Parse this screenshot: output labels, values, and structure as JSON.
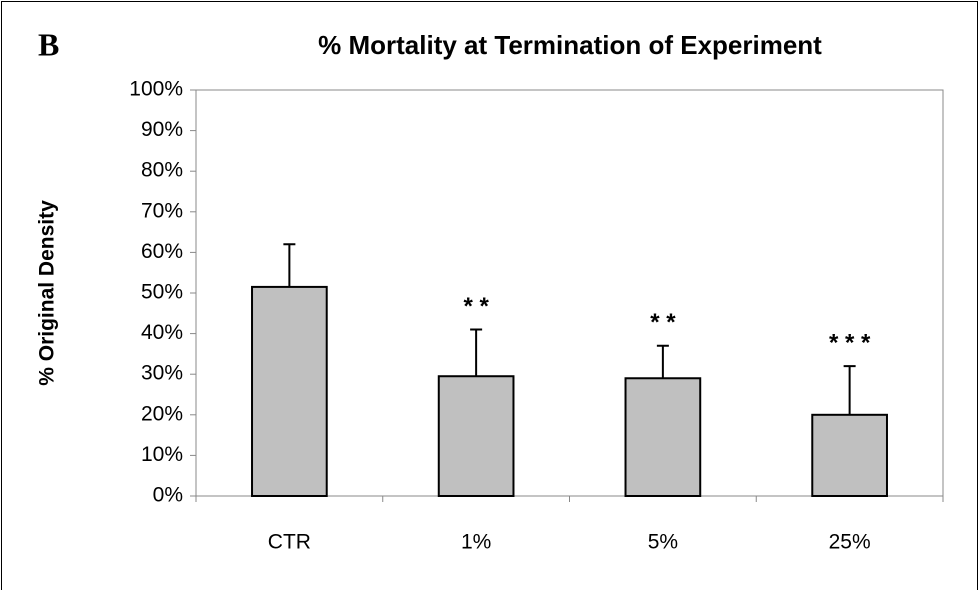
{
  "chart_data": {
    "type": "bar",
    "panel_label": "B",
    "title": "% Mortality at Termination of Experiment",
    "y_label": "% Original Density",
    "categories": [
      "CTR",
      "1%",
      "5%",
      "25%"
    ],
    "values": [
      51.5,
      29.5,
      29,
      20
    ],
    "errors": [
      10.5,
      11.5,
      8,
      12
    ],
    "color": "#c0c0c0",
    "annotations": [
      {
        "category": "1%",
        "text": "* *"
      },
      {
        "category": "5%",
        "text": "* *"
      },
      {
        "category": "25%",
        "text": "* * *"
      }
    ],
    "ylim": [
      0,
      100
    ],
    "yticks": [
      {
        "value": 0,
        "label": "0%"
      },
      {
        "value": 10,
        "label": "10%"
      },
      {
        "value": 20,
        "label": "20%"
      },
      {
        "value": 30,
        "label": "30%"
      },
      {
        "value": 40,
        "label": "40%"
      },
      {
        "value": 50,
        "label": "50%"
      },
      {
        "value": 60,
        "label": "60%"
      },
      {
        "value": 70,
        "label": "70%"
      },
      {
        "value": 80,
        "label": "80%"
      },
      {
        "value": 90,
        "label": "90%"
      },
      {
        "value": 100,
        "label": "100%"
      }
    ],
    "grid": false
  }
}
